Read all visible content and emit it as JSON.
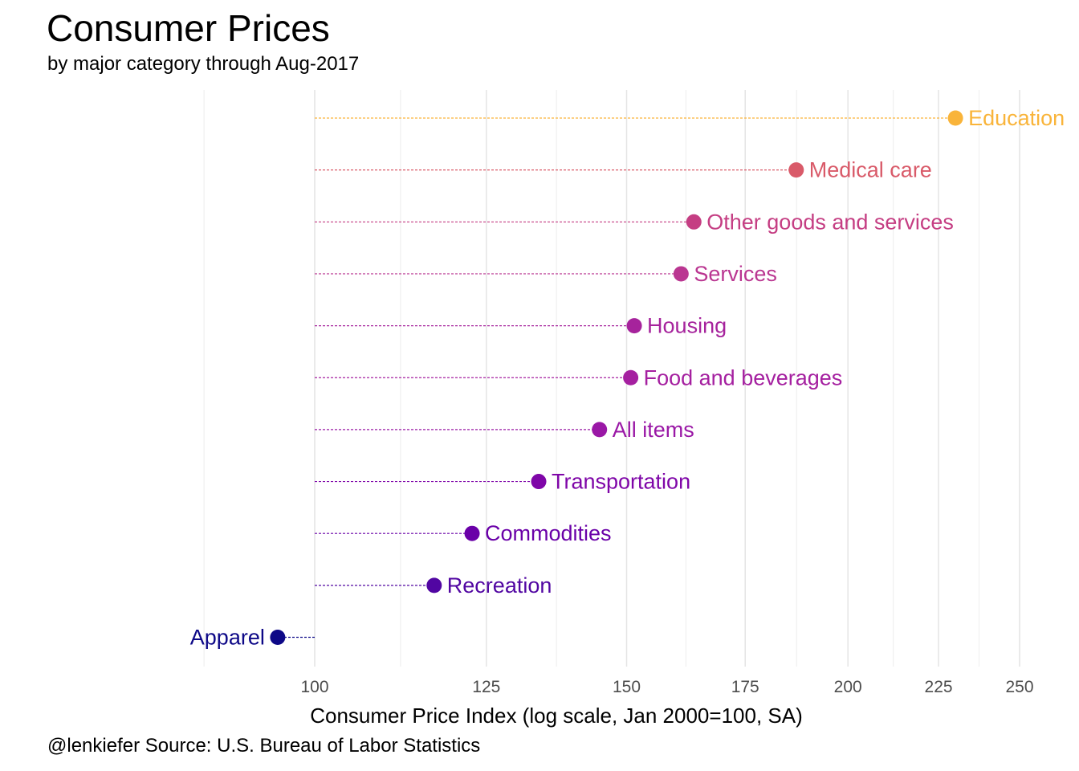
{
  "chart_data": {
    "type": "scatter",
    "title": "Consumer Prices",
    "subtitle": "by major category through Aug-2017",
    "xlabel": "Consumer Price Index (log scale, Jan 2000=100, SA)",
    "ylabel": "",
    "caption": "@lenkiefer Source: U.S. Bureau of Labor Statistics",
    "x_scale": "log",
    "xlim": [
      75,
      255
    ],
    "x_ticks": [
      100,
      125,
      150,
      175,
      200,
      225,
      250
    ],
    "baseline": 100,
    "grid": "vertical",
    "legend": "none",
    "points": [
      {
        "category": "Education",
        "value": 230.0,
        "color": "#F9B43A"
      },
      {
        "category": "Medical care",
        "value": 187.0,
        "color": "#D95A69"
      },
      {
        "category": "Other goods and services",
        "value": 163.7,
        "color": "#C53E83"
      },
      {
        "category": "Services",
        "value": 161.0,
        "color": "#BA3691"
      },
      {
        "category": "Housing",
        "value": 151.5,
        "color": "#A6239C"
      },
      {
        "category": "Food and beverages",
        "value": 150.8,
        "color": "#A520A0"
      },
      {
        "category": "All items",
        "value": 144.8,
        "color": "#9A18A6"
      },
      {
        "category": "Transportation",
        "value": 133.8,
        "color": "#7F06A8"
      },
      {
        "category": "Commodities",
        "value": 122.7,
        "color": "#6A00A8"
      },
      {
        "category": "Recreation",
        "value": 116.8,
        "color": "#5106A2"
      },
      {
        "category": "Apparel",
        "value": 95.3,
        "color": "#0D0887"
      }
    ]
  }
}
